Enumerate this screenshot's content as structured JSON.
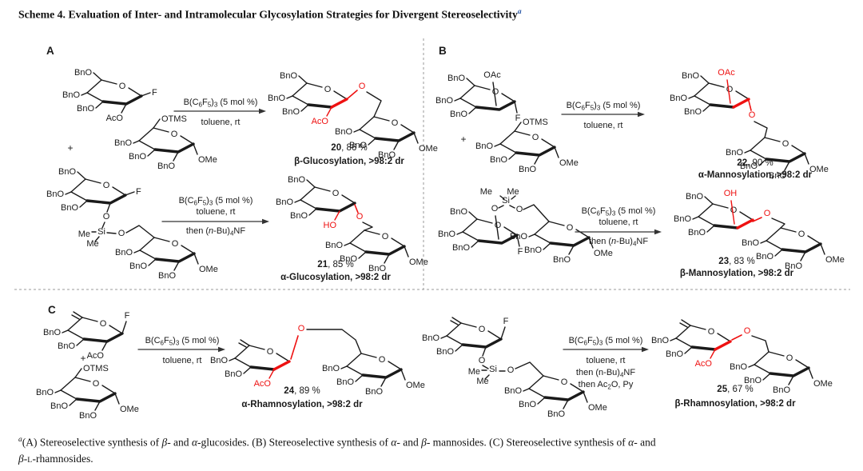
{
  "scheme_title": {
    "text": "Scheme 4. Evaluation of Inter- and Intramolecular Glycosylation Strategies for Divergent Stereoselectivity",
    "superscript": "a"
  },
  "footnote": "[sup][i]a[/i][/sup](A) Stereoselective synthesis of [i]β[/i]- and [i]α[/i]-glucosides. (B) Stereoselective synthesis of [i]α[/i]- and [i]β[/i]- mannosides. (C) Stereoselective synthesis of [i]α[/i]- and[br][i]β[/i]-[sc]L[/sc]-rhamnosides.",
  "colors": {
    "ink": "#1a1a1a",
    "highlight": "#ee1111",
    "arrow": "#333333",
    "divider": "#999999",
    "title_superscript": "#2d5aa8"
  },
  "panels": [
    {
      "label": "A",
      "reactions": [
        {
          "plus": "+",
          "conditions_above": [
            "B(C{6}F{5}){3} (5 mol %)"
          ],
          "conditions_below": [
            "toluene, rt"
          ],
          "product_number": "20",
          "product_yield": ", 86 %",
          "product_descriptor": "β-Glucosylation, >98:2 dr",
          "linker_o": "O",
          "molecules": [
            {
              "role": "glycosyl fluoride donor",
              "ring_o": "O",
              "substituents": [
                {
                  "pos": "c6",
                  "text": "BnO"
                },
                {
                  "pos": "c4",
                  "text": "BnO"
                },
                {
                  "pos": "c3",
                  "text": "BnO"
                },
                {
                  "pos": "c2dn",
                  "text": "AcO"
                },
                {
                  "pos": "c1r",
                  "text": "F"
                }
              ]
            },
            {
              "role": "silyl ether acceptor",
              "ring_o": "O",
              "substituents": [
                {
                  "pos": "c6o",
                  "text": "OTMS"
                },
                {
                  "pos": "c4",
                  "text": "BnO"
                },
                {
                  "pos": "c3",
                  "text": "BnO"
                },
                {
                  "pos": "c2dn",
                  "text": "BnO"
                },
                {
                  "pos": "c1dn",
                  "text": "OMe"
                }
              ]
            },
            {
              "role": "product top sugar",
              "ring_o": "O",
              "red_bond": true,
              "substituents": [
                {
                  "pos": "c6",
                  "text": "BnO"
                },
                {
                  "pos": "c4",
                  "text": "BnO"
                },
                {
                  "pos": "c3",
                  "text": "BnO"
                },
                {
                  "pos": "c2dn",
                  "text": "AcO",
                  "color": "highlight"
                }
              ]
            },
            {
              "role": "product bottom sugar",
              "ring_o": "O",
              "substituents": [
                {
                  "pos": "c4",
                  "text": "BnO"
                },
                {
                  "pos": "c3",
                  "text": "BnO"
                },
                {
                  "pos": "c2dn",
                  "text": "BnO"
                },
                {
                  "pos": "c1dn",
                  "text": "OMe"
                }
              ]
            }
          ]
        },
        {
          "conditions_above": [
            "B(C{6}F{5}){3} (5 mol %)",
            "toluene, rt"
          ],
          "conditions_below": [
            "then ([i]n[/i]-Bu){4}NF"
          ],
          "product_number": "21",
          "product_yield": ", 85 %",
          "product_descriptor": "α-Glucosylation, >98:2 dr",
          "linker_o": "O",
          "tether": {
            "si": "Si",
            "me1": "Me",
            "me2": "Me",
            "o": "O"
          },
          "molecules": [
            {
              "role": "tethered fluoride sugar",
              "ring_o": "O",
              "substituents": [
                {
                  "pos": "c6",
                  "text": "BnO"
                },
                {
                  "pos": "c4",
                  "text": "BnO"
                },
                {
                  "pos": "c3",
                  "text": "BnO"
                },
                {
                  "pos": "c2o_dn",
                  "text": "O"
                },
                {
                  "pos": "c1r",
                  "text": "F"
                }
              ]
            },
            {
              "role": "tethered acceptor sugar",
              "ring_o": "O",
              "substituents": [
                {
                  "pos": "c4",
                  "text": "BnO"
                },
                {
                  "pos": "c3",
                  "text": "BnO"
                },
                {
                  "pos": "c2dn",
                  "text": "BnO"
                },
                {
                  "pos": "c1dn",
                  "text": "OMe"
                }
              ]
            },
            {
              "role": "product top sugar",
              "ring_o": "O",
              "substituents": [
                {
                  "pos": "c6",
                  "text": "BnO"
                },
                {
                  "pos": "c4",
                  "text": "BnO"
                },
                {
                  "pos": "c3",
                  "text": "BnO"
                },
                {
                  "pos": "c2dn",
                  "text": "HO",
                  "color": "highlight"
                }
              ]
            },
            {
              "role": "product bottom sugar",
              "ring_o": "O",
              "substituents": [
                {
                  "pos": "c4",
                  "text": "BnO"
                },
                {
                  "pos": "c3",
                  "text": "BnO"
                },
                {
                  "pos": "c2dn",
                  "text": "BnO"
                },
                {
                  "pos": "c1dn",
                  "text": "OMe"
                }
              ]
            }
          ]
        }
      ]
    },
    {
      "label": "B",
      "reactions": [
        {
          "plus": "+",
          "conditions_above": [
            "B(C{6}F{5}){3} (5 mol %)"
          ],
          "conditions_below": [
            "toluene, rt"
          ],
          "product_number": "22",
          "product_yield": ", 90 %",
          "product_descriptor": "α-Mannosylation, >98:2 dr",
          "linker_o": "O",
          "molecules": [
            {
              "role": "mannosyl fluoride donor",
              "ring_o": "O",
              "substituents": [
                {
                  "pos": "c6",
                  "text": "BnO"
                },
                {
                  "pos": "c4",
                  "text": "BnO"
                },
                {
                  "pos": "c3",
                  "text": "BnO"
                },
                {
                  "pos": "c2top",
                  "text": "OAc"
                },
                {
                  "pos": "f_dn",
                  "text": "F"
                }
              ]
            },
            {
              "role": "silyl ether acceptor",
              "ring_o": "O",
              "substituents": [
                {
                  "pos": "c6o",
                  "text": "OTMS"
                },
                {
                  "pos": "c4",
                  "text": "BnO"
                },
                {
                  "pos": "c3",
                  "text": "BnO"
                },
                {
                  "pos": "c2dn",
                  "text": "BnO"
                },
                {
                  "pos": "c1dn",
                  "text": "OMe"
                }
              ]
            },
            {
              "role": "product top sugar",
              "ring_o": "O",
              "red_bond": true,
              "substituents": [
                {
                  "pos": "c6",
                  "text": "BnO"
                },
                {
                  "pos": "c4",
                  "text": "BnO"
                },
                {
                  "pos": "c3",
                  "text": "BnO"
                },
                {
                  "pos": "c2top",
                  "text": "OAc",
                  "color": "highlight"
                }
              ]
            },
            {
              "role": "product bottom sugar",
              "ring_o": "O",
              "substituents": [
                {
                  "pos": "c4",
                  "text": "BnO"
                },
                {
                  "pos": "c3",
                  "text": "BnO"
                },
                {
                  "pos": "c2dn",
                  "text": "BnO"
                },
                {
                  "pos": "c1dn",
                  "text": "OMe"
                }
              ]
            }
          ]
        },
        {
          "conditions_above": [
            "B(C{6}F{5}){3} (5 mol %)",
            "toluene, rt"
          ],
          "conditions_below": [
            "then ([i]n[/i]-Bu){4}NF"
          ],
          "product_number": "23",
          "product_yield": ", 83 %",
          "product_descriptor": "β-Mannosylation, >98:2 dr",
          "linker_o": "O",
          "tether": {
            "si": "Si",
            "me1": "Me",
            "me2": "Me",
            "o": "O"
          },
          "molecules": [
            {
              "role": "tethered mannosyl fluoride",
              "ring_o": "O",
              "substituents": [
                {
                  "pos": "c6",
                  "text": "BnO"
                },
                {
                  "pos": "c4",
                  "text": "BnO"
                },
                {
                  "pos": "c3",
                  "text": "BnO"
                },
                {
                  "pos": "c2top",
                  "text": "O"
                },
                {
                  "pos": "f_dn",
                  "text": "F"
                }
              ]
            },
            {
              "role": "tethered acceptor sugar",
              "ring_o": "O",
              "substituents": [
                {
                  "pos": "c4",
                  "text": "BnO"
                },
                {
                  "pos": "c3",
                  "text": "BnO"
                },
                {
                  "pos": "c2dn",
                  "text": "BnO"
                },
                {
                  "pos": "c1dn",
                  "text": "OMe"
                }
              ]
            },
            {
              "role": "product top sugar",
              "ring_o": "O",
              "red_bond": true,
              "substituents": [
                {
                  "pos": "c6",
                  "text": "BnO"
                },
                {
                  "pos": "c4",
                  "text": "BnO"
                },
                {
                  "pos": "c3",
                  "text": "BnO"
                },
                {
                  "pos": "c2top",
                  "text": "OH",
                  "color": "highlight"
                }
              ]
            },
            {
              "role": "product bottom sugar",
              "ring_o": "O",
              "substituents": [
                {
                  "pos": "c4",
                  "text": "BnO"
                },
                {
                  "pos": "c3",
                  "text": "BnO"
                },
                {
                  "pos": "c2dn",
                  "text": "BnO"
                },
                {
                  "pos": "c1dn",
                  "text": "OMe"
                }
              ]
            }
          ]
        }
      ]
    },
    {
      "label": "C",
      "reactions": [
        {
          "plus": "+",
          "conditions_above": [
            "B(C{6}F{5}){3} (5 mol %)"
          ],
          "conditions_below": [
            "toluene, rt"
          ],
          "product_number": "24",
          "product_yield": ", 89 %",
          "product_descriptor": "α-Rhamnosylation, >98:2 dr",
          "linker_o": "O",
          "molecules": [
            {
              "role": "rhamnosyl fluoride donor",
              "ring_o": "O",
              "substituents": [
                {
                  "pos": "me5",
                  "text": ""
                },
                {
                  "pos": "c4",
                  "text": "BnO"
                },
                {
                  "pos": "c3",
                  "text": "BnO"
                },
                {
                  "pos": "c2dn",
                  "text": "AcO"
                },
                {
                  "pos": "c1up",
                  "text": "F"
                }
              ]
            },
            {
              "role": "silyl ether acceptor",
              "ring_o": "O",
              "substituents": [
                {
                  "pos": "c6o",
                  "text": "OTMS"
                },
                {
                  "pos": "c4",
                  "text": "BnO"
                },
                {
                  "pos": "c3",
                  "text": "BnO"
                },
                {
                  "pos": "c2dn",
                  "text": "BnO"
                },
                {
                  "pos": "c1dn",
                  "text": "OMe"
                }
              ]
            },
            {
              "role": "product left sugar",
              "ring_o": "O",
              "red_bond": true,
              "substituents": [
                {
                  "pos": "me5",
                  "text": ""
                },
                {
                  "pos": "c4",
                  "text": "BnO"
                },
                {
                  "pos": "c3",
                  "text": "BnO"
                },
                {
                  "pos": "c2dn",
                  "text": "AcO",
                  "color": "highlight"
                }
              ]
            },
            {
              "role": "product right sugar",
              "ring_o": "O",
              "substituents": [
                {
                  "pos": "c4",
                  "text": "BnO"
                },
                {
                  "pos": "c3",
                  "text": "BnO"
                },
                {
                  "pos": "c2dn",
                  "text": "BnO"
                },
                {
                  "pos": "c1dn",
                  "text": "OMe"
                }
              ]
            }
          ]
        },
        {
          "conditions_above": [
            "B(C{6}F{5}){3} (5 mol %)"
          ],
          "conditions_below": [
            "toluene, rt",
            "then (n-Bu){4}NF",
            "then Ac{2}O, Py"
          ],
          "product_number": "25",
          "product_yield": ", 67 %",
          "product_descriptor": "β-Rhamnosylation, >98:2 dr",
          "linker_o": "O",
          "tether": {
            "si": "Si",
            "me1": "Me",
            "me2": "Me",
            "o": "O"
          },
          "molecules": [
            {
              "role": "tethered rhamnosyl fluoride",
              "ring_o": "O",
              "substituents": [
                {
                  "pos": "me5",
                  "text": ""
                },
                {
                  "pos": "c4",
                  "text": "BnO"
                },
                {
                  "pos": "c3",
                  "text": "BnO"
                },
                {
                  "pos": "c2o_dn",
                  "text": "O"
                },
                {
                  "pos": "c1up",
                  "text": "F"
                }
              ]
            },
            {
              "role": "tethered acceptor sugar",
              "ring_o": "O",
              "substituents": [
                {
                  "pos": "c4",
                  "text": "BnO"
                },
                {
                  "pos": "c3",
                  "text": "BnO"
                },
                {
                  "pos": "c2dn",
                  "text": "BnO"
                },
                {
                  "pos": "c1dn",
                  "text": "OMe"
                }
              ]
            },
            {
              "role": "product left sugar",
              "ring_o": "O",
              "red_bond": true,
              "substituents": [
                {
                  "pos": "me5",
                  "text": ""
                },
                {
                  "pos": "c4",
                  "text": "BnO"
                },
                {
                  "pos": "c3",
                  "text": "BnO"
                },
                {
                  "pos": "c2dn",
                  "text": "AcO",
                  "color": "highlight"
                }
              ]
            },
            {
              "role": "product right sugar",
              "ring_o": "O",
              "substituents": [
                {
                  "pos": "c4",
                  "text": "BnO"
                },
                {
                  "pos": "c3",
                  "text": "BnO"
                },
                {
                  "pos": "c2dn",
                  "text": "BnO"
                },
                {
                  "pos": "c1dn",
                  "text": "OMe"
                }
              ]
            }
          ]
        }
      ]
    }
  ]
}
